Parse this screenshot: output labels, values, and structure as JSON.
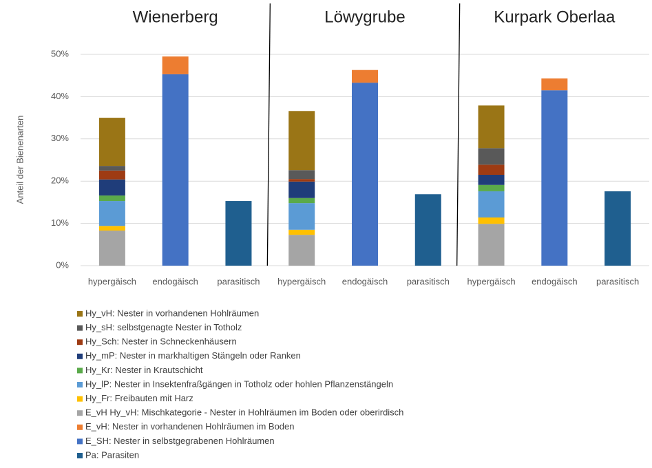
{
  "chart_data": {
    "type": "stacked_bar",
    "ylabel": "Anteil der Bienenarten",
    "groups": [
      "Wienerberg",
      "Löwygrube",
      "Kurpark Oberlaa"
    ],
    "categories": [
      "hypergäisch",
      "endogäisch",
      "parasitisch",
      "hypergäisch",
      "endogäisch",
      "parasitisch",
      "hypergäisch",
      "endogäisch",
      "parasitisch"
    ],
    "ylim": [
      0,
      50
    ],
    "yticks": [
      {
        "value": 0,
        "label": "0%"
      },
      {
        "value": 10,
        "label": "10%"
      },
      {
        "value": 20,
        "label": "20%"
      },
      {
        "value": 30,
        "label": "30%"
      },
      {
        "value": 40,
        "label": "40%"
      },
      {
        "value": 50,
        "label": "50%"
      }
    ],
    "grid": true,
    "series": [
      {
        "name": "Hy_vH: Nester in vorhandenen Hohlräumen",
        "color": "#9a7516",
        "values": [
          11.4,
          null,
          null,
          14.0,
          null,
          null,
          10.1,
          null,
          null
        ]
      },
      {
        "name": "Hy_sH: selbstgenagte Nester in Totholz",
        "color": "#595959",
        "values": [
          1.1,
          null,
          null,
          2.1,
          null,
          null,
          3.9,
          null,
          null
        ]
      },
      {
        "name": "Hy_Sch: Nester in Schneckenhäusern",
        "color": "#9e3b13",
        "values": [
          2.1,
          null,
          null,
          0.6,
          null,
          null,
          2.4,
          null,
          null
        ]
      },
      {
        "name": "Hy_mP: Nester in markhaltigen Stängeln oder Ranken",
        "color": "#1f3d7a",
        "values": [
          3.8,
          null,
          null,
          3.9,
          null,
          null,
          2.4,
          null,
          null
        ]
      },
      {
        "name": "Hy_Kr: Nester in Krautschicht",
        "color": "#5aaa4a",
        "values": [
          1.3,
          null,
          null,
          1.2,
          null,
          null,
          1.5,
          null,
          null
        ]
      },
      {
        "name": "Hy_lP: Nester in Insektenfraßgängen in Totholz oder hohlen Pflanzenstängeln",
        "color": "#5b9bd5",
        "values": [
          5.9,
          null,
          null,
          6.3,
          null,
          null,
          6.2,
          null,
          null
        ]
      },
      {
        "name": "Hy_Fr: Freibauten mit Harz",
        "color": "#ffc000",
        "values": [
          1.1,
          null,
          null,
          1.2,
          null,
          null,
          1.5,
          null,
          null
        ]
      },
      {
        "name": "E_vH Hy_vH: Mischkategorie - Nester in Hohlräumen im Boden oder oberirdisch",
        "color": "#a5a5a5",
        "values": [
          8.3,
          null,
          null,
          7.3,
          null,
          null,
          9.9,
          null,
          null
        ]
      },
      {
        "name": "E_vH: Nester in vorhandenen Hohlräumen im Boden",
        "color": "#ed7d31",
        "values": [
          null,
          4.2,
          null,
          null,
          3.0,
          null,
          null,
          2.8,
          null
        ]
      },
      {
        "name": "E_SH: Nester in selbstgegrabenen Hohlräumen",
        "color": "#4472c4",
        "values": [
          null,
          45.3,
          null,
          null,
          43.3,
          null,
          null,
          41.5,
          null
        ]
      },
      {
        "name": "Pa: Parasiten",
        "color": "#1f5f8f",
        "values": [
          null,
          null,
          15.3,
          null,
          null,
          16.9,
          null,
          null,
          17.6
        ]
      }
    ]
  }
}
